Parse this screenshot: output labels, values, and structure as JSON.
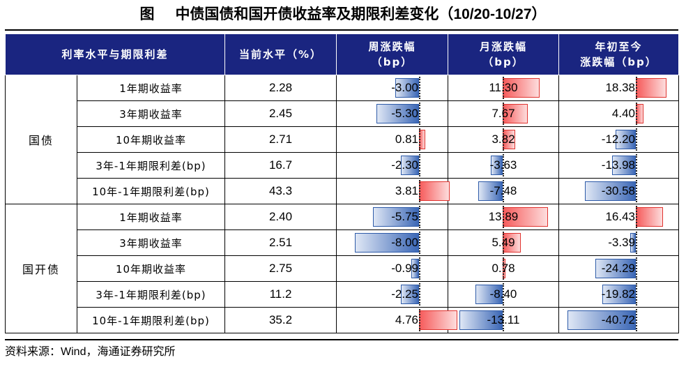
{
  "title": {
    "prefix": "图",
    "text": "中债国债和国开债收益率及期限利差变化（",
    "date_range": "10/20-10/27",
    "suffix": "）"
  },
  "colors": {
    "header_bg": "#1a2580",
    "neg_bar": "#3b67b6",
    "pos_bar": "#f65b5b"
  },
  "headers": {
    "col1": "利率水平与期限利差",
    "col2": "当前水平（%）",
    "col3_l1": "周涨跌幅",
    "col3_l2": "（bp）",
    "col4_l1": "月涨跌幅",
    "col4_l2": "（bp）",
    "col5_l1": "年初至今",
    "col5_l2": "涨跌幅（bp）"
  },
  "groups": [
    {
      "name": "国债",
      "rows": [
        {
          "metric": "1年期收益率",
          "level": "2.28",
          "weekly": "-3.00",
          "monthly": "11.30",
          "ytd": "18.38"
        },
        {
          "metric": "3年期收益率",
          "level": "2.45",
          "weekly": "-5.30",
          "monthly": "7.67",
          "ytd": "4.40"
        },
        {
          "metric": "10年期收益率",
          "level": "2.71",
          "weekly": "0.81",
          "monthly": "3.82",
          "ytd": "-12.20"
        },
        {
          "metric": "3年-1年期限利差(bp)",
          "level": "16.7",
          "weekly": "-2.30",
          "monthly": "-3.63",
          "ytd": "-13.98"
        },
        {
          "metric": "10年-1年期限利差(bp)",
          "level": "43.3",
          "weekly": "3.81",
          "monthly": "-7.48",
          "ytd": "-30.58"
        }
      ]
    },
    {
      "name": "国开债",
      "rows": [
        {
          "metric": "1年期收益率",
          "level": "2.40",
          "weekly": "-5.75",
          "monthly": "13.89",
          "ytd": "16.43"
        },
        {
          "metric": "3年期收益率",
          "level": "2.51",
          "weekly": "-8.00",
          "monthly": "5.49",
          "ytd": "-3.39"
        },
        {
          "metric": "10年期收益率",
          "level": "2.75",
          "weekly": "-0.99",
          "monthly": "0.78",
          "ytd": "-24.29"
        },
        {
          "metric": "3年-1年期限利差(bp)",
          "level": "11.2",
          "weekly": "-2.25",
          "monthly": "-8.40",
          "ytd": "-19.82"
        },
        {
          "metric": "10年-1年期限利差(bp)",
          "level": "35.2",
          "weekly": "4.76",
          "monthly": "-13.11",
          "ytd": "-40.72"
        }
      ]
    }
  ],
  "source": {
    "label": "资料来源：",
    "wind": "Wind",
    "org": "，海通证券研究所"
  }
}
